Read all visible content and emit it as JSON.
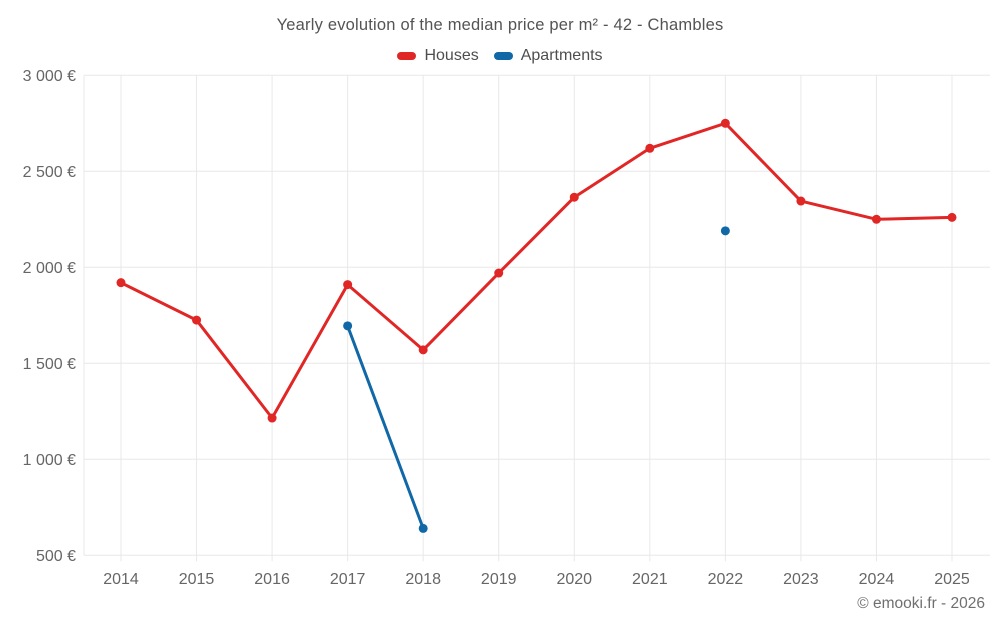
{
  "chart": {
    "title": "Yearly evolution of the median price per m² - 42 - Chambles",
    "footer": "© emooki.fr - 2026"
  },
  "chart_data": {
    "type": "line",
    "title": "Yearly evolution of the median price per m² - 42 - Chambles",
    "x": [
      2014,
      2015,
      2016,
      2017,
      2018,
      2019,
      2020,
      2021,
      2022,
      2023,
      2024,
      2025
    ],
    "series": [
      {
        "name": "Houses",
        "color": "#e12626",
        "values": [
          1920,
          1725,
          1215,
          1910,
          1570,
          1970,
          2365,
          2620,
          2750,
          2345,
          2250,
          2260
        ]
      },
      {
        "name": "Apartments",
        "color": "#1168a7",
        "values": [
          null,
          null,
          null,
          1695,
          640,
          null,
          null,
          null,
          2190,
          null,
          null,
          null
        ]
      }
    ],
    "xlabel": "",
    "ylabel": "",
    "ylim": [
      500,
      3000
    ],
    "yticks": [
      500,
      1000,
      1500,
      2000,
      2500,
      3000
    ],
    "ytick_labels": [
      "500 €",
      "1 000 €",
      "1 500 €",
      "2 000 €",
      "2 500 €",
      "3 000 €"
    ],
    "grid": true,
    "legend_position": "top"
  },
  "colors": {
    "houses": "#e12626",
    "apartments": "#1168a7",
    "grid": "#e8e8e8",
    "axis_text": "#666666",
    "title_text": "#545454",
    "footer_text": "#6f6f6f"
  }
}
